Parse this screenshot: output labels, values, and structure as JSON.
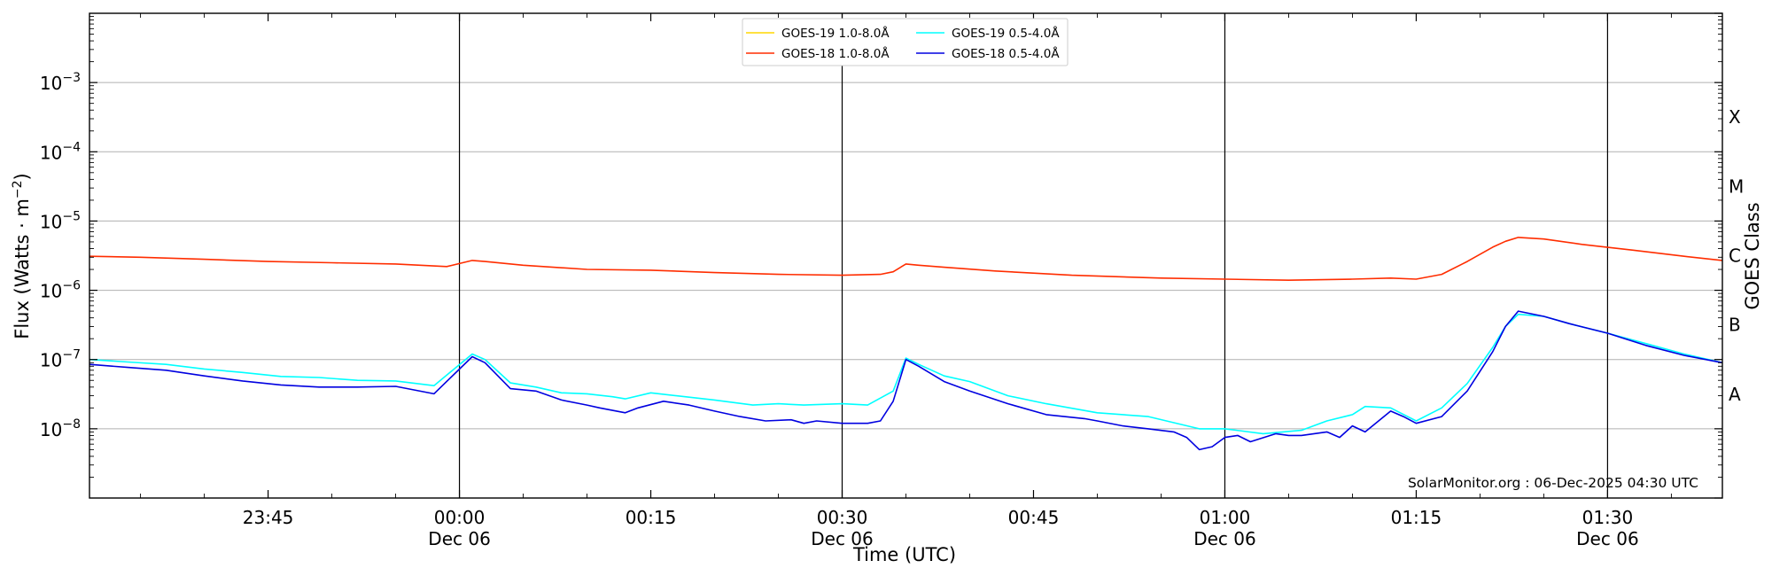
{
  "chart_data": {
    "type": "line",
    "xlabel": "Time (UTC)",
    "ylabel_main": "Flux (Watts · m",
    "ylabel_exp": "−2",
    "ylabel_close": ")",
    "y2label": "GOES Class",
    "credit": "SolarMonitor.org : 06-Dec-2025 04:30 UTC",
    "yscale": "log",
    "xlim": [
      "2025-12-05T23:31",
      "2025-12-06T01:39"
    ],
    "ylim": [
      1e-09,
      0.01
    ],
    "grid": "horizontal",
    "legend_position": "top-center",
    "x_ticks": [
      {
        "t": "2025-12-05T23:45",
        "label": "23:45",
        "sublabel": ""
      },
      {
        "t": "2025-12-06T00:00",
        "label": "00:00",
        "sublabel": "Dec 06"
      },
      {
        "t": "2025-12-06T00:15",
        "label": "00:15",
        "sublabel": ""
      },
      {
        "t": "2025-12-06T00:30",
        "label": "00:30",
        "sublabel": "Dec 06"
      },
      {
        "t": "2025-12-06T00:45",
        "label": "00:45",
        "sublabel": ""
      },
      {
        "t": "2025-12-06T01:00",
        "label": "01:00",
        "sublabel": "Dec 06"
      },
      {
        "t": "2025-12-06T01:15",
        "label": "01:15",
        "sublabel": ""
      },
      {
        "t": "2025-12-06T01:30",
        "label": "01:30",
        "sublabel": "Dec 06"
      }
    ],
    "y_ticks": [
      {
        "exp": -8,
        "label": "10",
        "sup": "−8"
      },
      {
        "exp": -7,
        "label": "10",
        "sup": "−7"
      },
      {
        "exp": -6,
        "label": "10",
        "sup": "−6"
      },
      {
        "exp": -5,
        "label": "10",
        "sup": "−5"
      },
      {
        "exp": -4,
        "label": "10",
        "sup": "−4"
      },
      {
        "exp": -3,
        "label": "10",
        "sup": "−3"
      }
    ],
    "vertical_lines": [
      "2025-12-06T00:00",
      "2025-12-06T00:30",
      "2025-12-06T01:00",
      "2025-12-06T01:30"
    ],
    "goes_classes": [
      {
        "label": "A",
        "exp": -7.5
      },
      {
        "label": "B",
        "exp": -6.5
      },
      {
        "label": "C",
        "exp": -5.5
      },
      {
        "label": "M",
        "exp": -4.5
      },
      {
        "label": "X",
        "exp": -3.5
      }
    ],
    "series": [
      {
        "name": "GOES-19 1.0-8.0Å",
        "color": "#ffd700",
        "x": [],
        "y": []
      },
      {
        "name": "GOES-19 0.5-4.0Å",
        "color": "#00ffff",
        "x": [
          "2025-12-05T23:31",
          "2025-12-05T23:34",
          "2025-12-05T23:37",
          "2025-12-05T23:40",
          "2025-12-05T23:43",
          "2025-12-05T23:46",
          "2025-12-05T23:49",
          "2025-12-05T23:52",
          "2025-12-05T23:55",
          "2025-12-05T23:58",
          "2025-12-06T00:01",
          "2025-12-06T00:02",
          "2025-12-06T00:04",
          "2025-12-06T00:06",
          "2025-12-06T00:08",
          "2025-12-06T00:10",
          "2025-12-06T00:12",
          "2025-12-06T00:13",
          "2025-12-06T00:15",
          "2025-12-06T00:17",
          "2025-12-06T00:20",
          "2025-12-06T00:23",
          "2025-12-06T00:25",
          "2025-12-06T00:27",
          "2025-12-06T00:30",
          "2025-12-06T00:32",
          "2025-12-06T00:34",
          "2025-12-06T00:35",
          "2025-12-06T00:36",
          "2025-12-06T00:38",
          "2025-12-06T00:40",
          "2025-12-06T00:43",
          "2025-12-06T00:46",
          "2025-12-06T00:50",
          "2025-12-06T00:54",
          "2025-12-06T00:58",
          "2025-12-06T01:00",
          "2025-12-06T01:03",
          "2025-12-06T01:06",
          "2025-12-06T01:08",
          "2025-12-06T01:10",
          "2025-12-06T01:11",
          "2025-12-06T01:13",
          "2025-12-06T01:15",
          "2025-12-06T01:17",
          "2025-12-06T01:19",
          "2025-12-06T01:21",
          "2025-12-06T01:22",
          "2025-12-06T01:23",
          "2025-12-06T01:25",
          "2025-12-06T01:27",
          "2025-12-06T01:30",
          "2025-12-06T01:33",
          "2025-12-06T01:36",
          "2025-12-06T01:39"
        ],
        "y": [
          1e-07,
          9.2e-08,
          8.5e-08,
          7.3e-08,
          6.5e-08,
          5.7e-08,
          5.5e-08,
          5e-08,
          4.9e-08,
          4.2e-08,
          1.2e-07,
          1e-07,
          4.6e-08,
          4e-08,
          3.3e-08,
          3.2e-08,
          2.9e-08,
          2.7e-08,
          3.3e-08,
          3e-08,
          2.6e-08,
          2.2e-08,
          2.3e-08,
          2.2e-08,
          2.3e-08,
          2.2e-08,
          3.5e-08,
          1.05e-07,
          8.5e-08,
          5.8e-08,
          4.8e-08,
          3e-08,
          2.3e-08,
          1.7e-08,
          1.5e-08,
          1e-08,
          1e-08,
          8.5e-09,
          9.5e-09,
          1.3e-08,
          1.6e-08,
          2.1e-08,
          2e-08,
          1.3e-08,
          2e-08,
          4.5e-08,
          1.5e-07,
          3e-07,
          4.5e-07,
          4.2e-07,
          3.3e-07,
          2.4e-07,
          1.7e-07,
          1.2e-07,
          9e-08
        ]
      },
      {
        "name": "GOES-18 1.0-8.0Å",
        "color": "#ff2d00",
        "x": [
          "2025-12-05T23:31",
          "2025-12-05T23:35",
          "2025-12-05T23:40",
          "2025-12-05T23:45",
          "2025-12-05T23:50",
          "2025-12-05T23:55",
          "2025-12-05T23:59",
          "2025-12-06T00:01",
          "2025-12-06T00:02",
          "2025-12-06T00:05",
          "2025-12-06T00:10",
          "2025-12-06T00:15",
          "2025-12-06T00:20",
          "2025-12-06T00:25",
          "2025-12-06T00:30",
          "2025-12-06T00:33",
          "2025-12-06T00:34",
          "2025-12-06T00:35",
          "2025-12-06T00:36",
          "2025-12-06T00:38",
          "2025-12-06T00:42",
          "2025-12-06T00:48",
          "2025-12-06T00:55",
          "2025-12-06T01:00",
          "2025-12-06T01:05",
          "2025-12-06T01:10",
          "2025-12-06T01:13",
          "2025-12-06T01:15",
          "2025-12-06T01:17",
          "2025-12-06T01:19",
          "2025-12-06T01:21",
          "2025-12-06T01:22",
          "2025-12-06T01:23",
          "2025-12-06T01:25",
          "2025-12-06T01:28",
          "2025-12-06T01:32",
          "2025-12-06T01:36",
          "2025-12-06T01:39"
        ],
        "y": [
          3.1e-06,
          3e-06,
          2.8e-06,
          2.6e-06,
          2.5e-06,
          2.4e-06,
          2.2e-06,
          2.7e-06,
          2.6e-06,
          2.3e-06,
          2e-06,
          1.95e-06,
          1.8e-06,
          1.7e-06,
          1.65e-06,
          1.7e-06,
          1.85e-06,
          2.4e-06,
          2.3e-06,
          2.15e-06,
          1.9e-06,
          1.65e-06,
          1.5e-06,
          1.45e-06,
          1.4e-06,
          1.45e-06,
          1.5e-06,
          1.45e-06,
          1.7e-06,
          2.6e-06,
          4.2e-06,
          5.1e-06,
          5.8e-06,
          5.5e-06,
          4.6e-06,
          3.8e-06,
          3.1e-06,
          2.7e-06
        ]
      },
      {
        "name": "GOES-18 0.5-4.0Å",
        "color": "#0000e0",
        "x": [
          "2025-12-05T23:31",
          "2025-12-05T23:34",
          "2025-12-05T23:37",
          "2025-12-05T23:40",
          "2025-12-05T23:43",
          "2025-12-05T23:46",
          "2025-12-05T23:49",
          "2025-12-05T23:52",
          "2025-12-05T23:55",
          "2025-12-05T23:58",
          "2025-12-06T00:01",
          "2025-12-06T00:02",
          "2025-12-06T00:04",
          "2025-12-06T00:06",
          "2025-12-06T00:08",
          "2025-12-06T00:10",
          "2025-12-06T00:11",
          "2025-12-06T00:13",
          "2025-12-06T00:14",
          "2025-12-06T00:16",
          "2025-12-06T00:18",
          "2025-12-06T00:20",
          "2025-12-06T00:22",
          "2025-12-06T00:24",
          "2025-12-06T00:26",
          "2025-12-06T00:27",
          "2025-12-06T00:28",
          "2025-12-06T00:30",
          "2025-12-06T00:32",
          "2025-12-06T00:33",
          "2025-12-06T00:34",
          "2025-12-06T00:35",
          "2025-12-06T00:36",
          "2025-12-06T00:38",
          "2025-12-06T00:40",
          "2025-12-06T00:43",
          "2025-12-06T00:46",
          "2025-12-06T00:49",
          "2025-12-06T00:50",
          "2025-12-06T00:52",
          "2025-12-06T00:54",
          "2025-12-06T00:56",
          "2025-12-06T00:57",
          "2025-12-06T00:58",
          "2025-12-06T00:59",
          "2025-12-06T01:00",
          "2025-12-06T01:01",
          "2025-12-06T01:02",
          "2025-12-06T01:04",
          "2025-12-06T01:05",
          "2025-12-06T01:06",
          "2025-12-06T01:08",
          "2025-12-06T01:09",
          "2025-12-06T01:10",
          "2025-12-06T01:11",
          "2025-12-06T01:13",
          "2025-12-06T01:14",
          "2025-12-06T01:15",
          "2025-12-06T01:17",
          "2025-12-06T01:19",
          "2025-12-06T01:21",
          "2025-12-06T01:22",
          "2025-12-06T01:23",
          "2025-12-06T01:25",
          "2025-12-06T01:27",
          "2025-12-06T01:30",
          "2025-12-06T01:33",
          "2025-12-06T01:36",
          "2025-12-06T01:39"
        ],
        "y": [
          8.5e-08,
          7.7e-08,
          7e-08,
          5.8e-08,
          4.9e-08,
          4.3e-08,
          4e-08,
          4e-08,
          4.1e-08,
          3.2e-08,
          1.1e-07,
          9e-08,
          3.8e-08,
          3.5e-08,
          2.6e-08,
          2.2e-08,
          2e-08,
          1.7e-08,
          2e-08,
          2.5e-08,
          2.2e-08,
          1.8e-08,
          1.5e-08,
          1.3e-08,
          1.35e-08,
          1.2e-08,
          1.3e-08,
          1.2e-08,
          1.2e-08,
          1.3e-08,
          2.5e-08,
          1e-07,
          8e-08,
          4.8e-08,
          3.5e-08,
          2.3e-08,
          1.6e-08,
          1.4e-08,
          1.3e-08,
          1.1e-08,
          1e-08,
          9e-09,
          7.5e-09,
          5e-09,
          5.5e-09,
          7.5e-09,
          8e-09,
          6.5e-09,
          8.5e-09,
          8e-09,
          8e-09,
          9e-09,
          7.5e-09,
          1.1e-08,
          9e-09,
          1.8e-08,
          1.5e-08,
          1.2e-08,
          1.5e-08,
          3.5e-08,
          1.3e-07,
          3e-07,
          5e-07,
          4.2e-07,
          3.3e-07,
          2.4e-07,
          1.6e-07,
          1.15e-07,
          9e-08
        ]
      }
    ]
  }
}
